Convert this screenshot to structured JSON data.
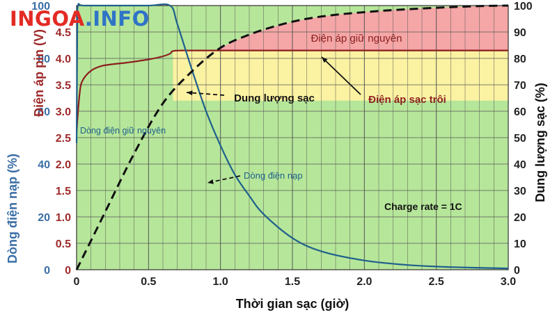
{
  "logo": {
    "main": "INGOA",
    "suffix": ".INFO",
    "color_main": "#e32b25",
    "color_suffix": "#2f73c7"
  },
  "colors": {
    "zone_green": "#b6e69a",
    "zone_yellow": "#fbf2a2",
    "zone_pink": "#f5a6a6",
    "voltage_line": "#8b1e1e",
    "current_line": "#1e5f8c",
    "capacity_line": "#111111",
    "grid": "#555555",
    "voltage_axis_text": "#9e2a2a",
    "current_axis_text": "#3a6ea5"
  },
  "chart_data": {
    "type": "line",
    "title": "",
    "xlabel": "Thời gian sạc (giờ)",
    "xlim": [
      0,
      3.0
    ],
    "x_ticks": [
      "0",
      "0.5",
      "1.0",
      "1.5",
      "2.0",
      "2.5",
      "3.0"
    ],
    "grid": true,
    "axes": {
      "left_outer": {
        "label": "Dòng điện nạp (%)",
        "range": [
          0,
          100
        ],
        "ticks": [
          "0",
          "20",
          "40",
          "60",
          "80",
          "100"
        ]
      },
      "left_inner": {
        "label": "Điện áp pin (V)",
        "range": [
          0,
          5.0
        ],
        "ticks": [
          "0",
          "0.5",
          "1.0",
          "1.5",
          "2.0",
          "2.5",
          "3.0",
          "3.5",
          "4.0",
          "4.5"
        ]
      },
      "right": {
        "label": "Dung lượng sạc (%)",
        "range": [
          0,
          100
        ],
        "ticks": [
          "0",
          "10",
          "20",
          "30",
          "40",
          "50",
          "60",
          "70",
          "80",
          "90",
          "100"
        ]
      }
    },
    "zones": [
      {
        "name": "Điện áp giữ nguyên",
        "x": [
          0.67,
          3.0
        ],
        "y_volts": [
          4.15,
          5.0
        ]
      },
      {
        "name": "Điện áp sạc trôi",
        "x": [
          0.67,
          3.0
        ],
        "y_volts": [
          3.2,
          4.15
        ]
      }
    ],
    "series": [
      {
        "name": "Điện áp pin",
        "axis": "left_inner",
        "x": [
          0,
          0.01,
          0.02,
          0.03,
          0.05,
          0.08,
          0.12,
          0.18,
          0.25,
          0.35,
          0.5,
          0.6,
          0.65,
          0.67,
          0.75,
          1.0,
          1.5,
          2.0,
          2.5,
          3.0
        ],
        "y": [
          2.6,
          3.0,
          3.3,
          3.5,
          3.62,
          3.72,
          3.8,
          3.86,
          3.89,
          3.92,
          3.98,
          4.04,
          4.09,
          4.14,
          4.15,
          4.15,
          4.15,
          4.15,
          4.15,
          4.15
        ]
      },
      {
        "name": "Dòng điện nạp",
        "axis": "left_outer",
        "x": [
          0,
          0.005,
          0.01,
          0.05,
          0.3,
          0.5,
          0.65,
          0.7,
          0.8,
          0.9,
          1.0,
          1.1,
          1.2,
          1.3,
          1.5,
          1.7,
          2.0,
          2.3,
          2.6,
          3.0
        ],
        "y": [
          48,
          90,
          100,
          100,
          100,
          100,
          100,
          93,
          76,
          60,
          47,
          36,
          28,
          21,
          12,
          7,
          3.5,
          1.8,
          1,
          0.5
        ]
      },
      {
        "name": "Dung lượng sạc",
        "axis": "right",
        "x": [
          0,
          0.2,
          0.4,
          0.6,
          0.8,
          1.0,
          1.2,
          1.4,
          1.6,
          1.8,
          2.0,
          2.2,
          2.4,
          2.6,
          2.8,
          3.0
        ],
        "y": [
          0,
          22,
          44,
          63,
          75,
          84,
          89,
          92.5,
          95,
          96.5,
          97.5,
          98.3,
          98.9,
          99.4,
          99.8,
          100
        ]
      }
    ],
    "annotations": [
      "Điện áp giữ nguyên",
      "Dung lượng sạc",
      "Điện áp sạc trôi",
      "Dòng điện giữ nguyên",
      "Dòng điện nạp",
      "Charge rate = 1C"
    ]
  }
}
